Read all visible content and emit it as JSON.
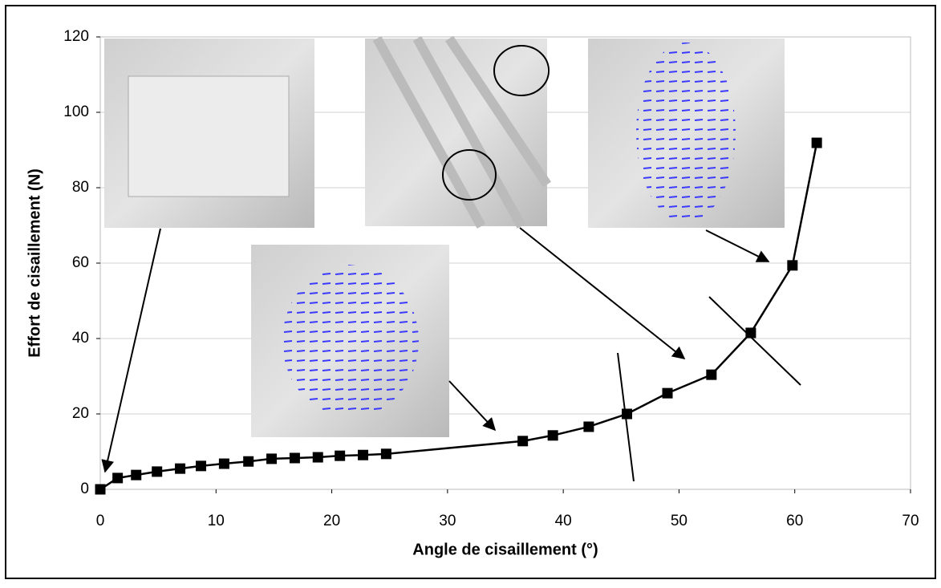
{
  "chart_data": {
    "type": "line",
    "x_label": "Angle de cisaillement (°)",
    "y_label": "Effort de cisaillement (N)",
    "x": [
      0,
      1.5,
      3.1,
      4.9,
      6.9,
      8.7,
      10.7,
      12.8,
      14.8,
      16.8,
      18.8,
      20.7,
      22.7,
      24.7,
      36.5,
      39.1,
      42.2,
      45.5,
      49,
      52.8,
      56.2,
      59.8,
      61.9
    ],
    "values": [
      0,
      3,
      3.8,
      4.7,
      5.5,
      6.2,
      6.8,
      7.4,
      8.1,
      8.3,
      8.5,
      8.9,
      9.1,
      9.4,
      12.8,
      14.3,
      16.6,
      20,
      25.5,
      30.4,
      41.5,
      59.4,
      91.9
    ],
    "color": "#000000",
    "marker": "square",
    "xlim": [
      0,
      70
    ],
    "xticks": [
      0,
      10,
      20,
      30,
      40,
      50,
      60,
      70
    ],
    "ylim": [
      0,
      120
    ],
    "yticks": [
      0,
      20,
      40,
      60,
      80,
      100,
      120
    ],
    "grid": true
  }
}
